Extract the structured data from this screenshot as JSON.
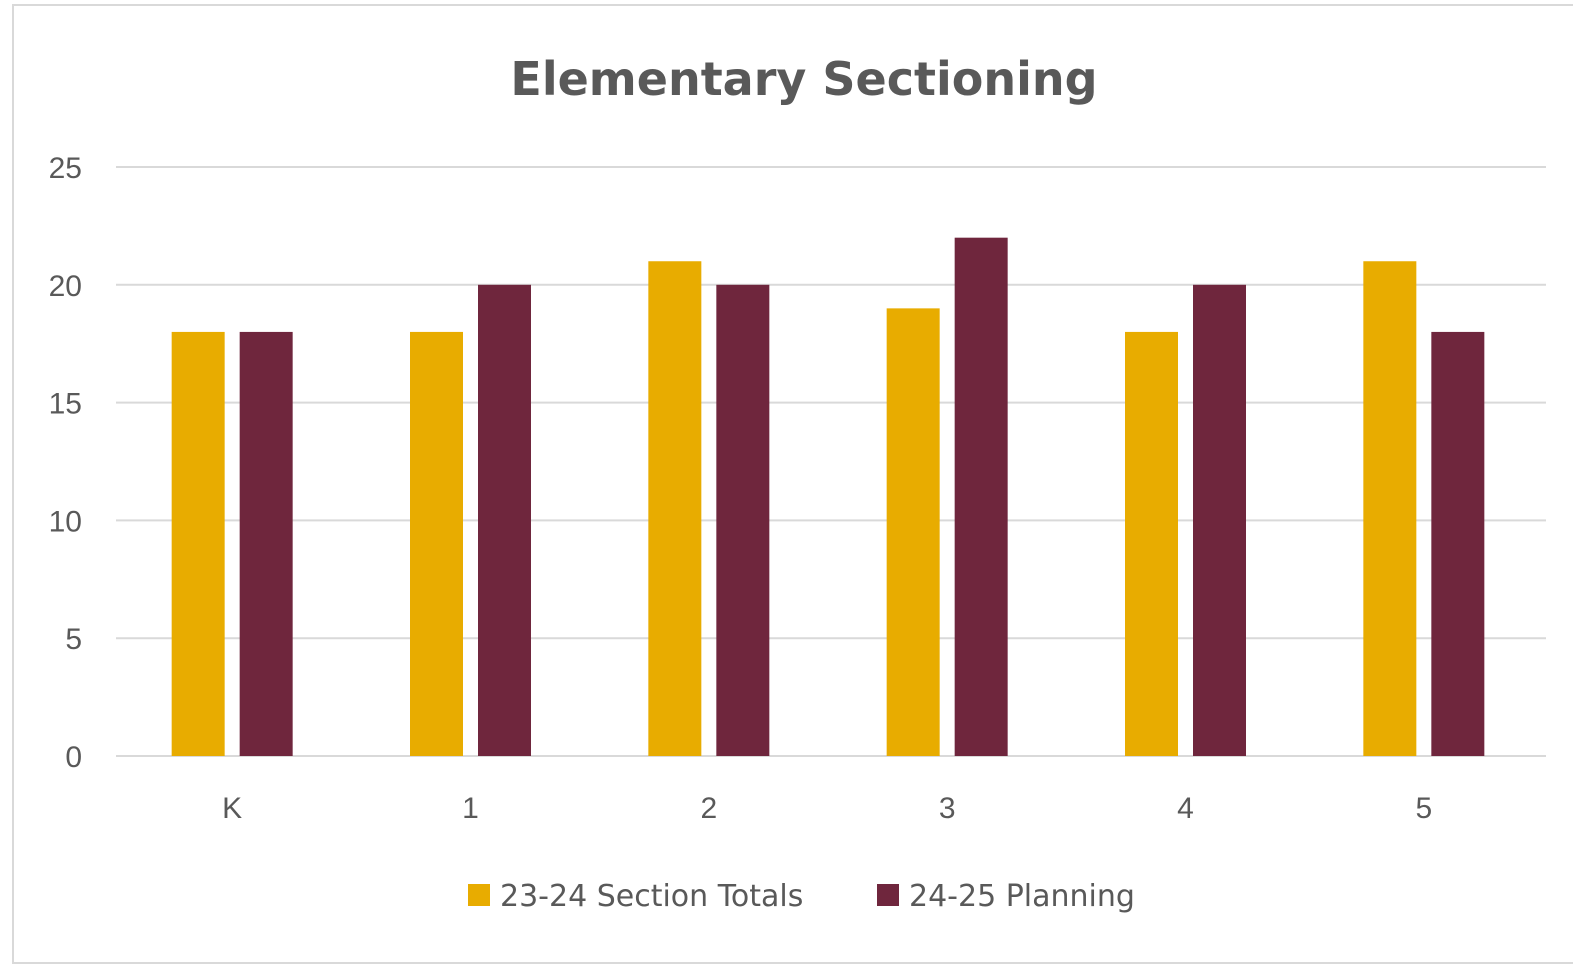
{
  "chart_data": {
    "type": "bar",
    "title": "Elementary Sectioning",
    "xlabel": "",
    "ylabel": "",
    "categories": [
      "K",
      "1",
      "2",
      "3",
      "4",
      "5"
    ],
    "series": [
      {
        "name": "23-24 Section Totals",
        "values": [
          18,
          18,
          21,
          19,
          18,
          21
        ],
        "color": "#E8AC00"
      },
      {
        "name": "24-25 Planning",
        "values": [
          18,
          20,
          20,
          22,
          20,
          18
        ],
        "color": "#6F263D"
      }
    ],
    "ylim": [
      0,
      25
    ],
    "yticks": [
      0,
      5,
      10,
      15,
      20,
      25
    ],
    "grid": true,
    "legend_position": "bottom"
  }
}
